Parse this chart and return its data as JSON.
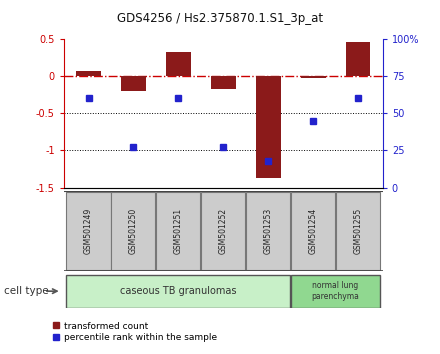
{
  "title": "GDS4256 / Hs2.375870.1.S1_3p_at",
  "samples": [
    "GSM501249",
    "GSM501250",
    "GSM501251",
    "GSM501252",
    "GSM501253",
    "GSM501254",
    "GSM501255"
  ],
  "transformed_count": [
    0.07,
    -0.2,
    0.32,
    -0.18,
    -1.37,
    -0.02,
    0.46
  ],
  "percentile_rank": [
    60,
    27,
    60,
    27,
    18,
    45,
    60
  ],
  "ylim_left": [
    -1.5,
    0.5
  ],
  "ylim_right": [
    0,
    100
  ],
  "yticks_left": [
    -1.5,
    -1.0,
    -0.5,
    0.0,
    0.5
  ],
  "ytick_labels_left": [
    "-1.5",
    "-1",
    "-0.5",
    "0",
    "0.5"
  ],
  "yticks_right": [
    0,
    25,
    50,
    75,
    100
  ],
  "ytick_labels_right": [
    "0",
    "25",
    "50",
    "75",
    "100%"
  ],
  "group1_indices": [
    0,
    1,
    2,
    3,
    4
  ],
  "group2_indices": [
    5,
    6
  ],
  "group1_label": "caseous TB granulomas",
  "group2_label": "normal lung\nparenchyma",
  "group1_color": "#c8f0c8",
  "group2_color": "#90d890",
  "sample_box_color": "#cccccc",
  "sample_box_edge": "#777777",
  "cell_type_label": "cell type",
  "legend1_label": "transformed count",
  "legend2_label": "percentile rank within the sample",
  "bar_color": "#8b1a1a",
  "dot_color": "#2222cc",
  "refline_color": "#cc0000",
  "dotline_color": "#000000",
  "left_axis_color": "#cc0000",
  "right_axis_color": "#2222cc",
  "background_color": "#ffffff",
  "title_fontsize": 8.5,
  "tick_fontsize": 7,
  "sample_fontsize": 5.5,
  "group_fontsize": 7,
  "legend_fontsize": 6.5,
  "cell_type_fontsize": 7.5
}
